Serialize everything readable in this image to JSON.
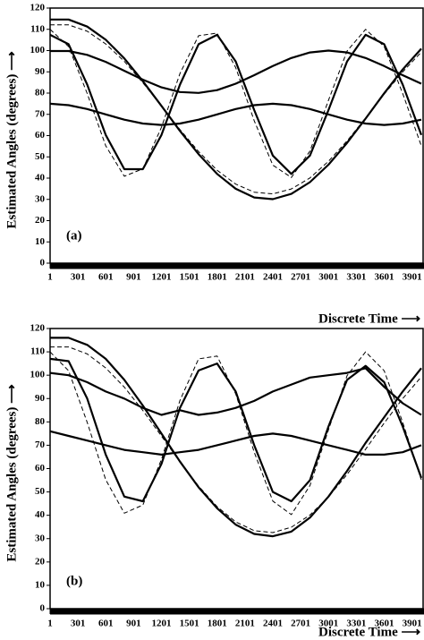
{
  "chart_data": [
    {
      "type": "line",
      "panel_label": "(a)",
      "xlabel": "Discrete Time  ⟶",
      "ylabel": "Estimated Angles (degrees)  ⟶",
      "x": [
        1,
        201,
        401,
        601,
        801,
        1001,
        1201,
        1401,
        1601,
        1801,
        2001,
        2201,
        2401,
        2601,
        2801,
        3001,
        3201,
        3401,
        3601,
        3801,
        4001
      ],
      "xlim": [
        1,
        4030
      ],
      "xticks": [
        1,
        301,
        601,
        901,
        1201,
        1501,
        1801,
        2101,
        2401,
        2701,
        3001,
        3301,
        3601,
        3901
      ],
      "ylim": [
        0,
        120
      ],
      "yticks": [
        0,
        10,
        20,
        30,
        40,
        50,
        60,
        70,
        80,
        90,
        100,
        110,
        120
      ],
      "series": [
        {
          "color": "#000000",
          "style": "solid",
          "values": [
            107.4,
            103.0,
            84.0,
            60.3,
            44.2,
            44.2,
            60.3,
            84.0,
            103.0,
            107.4,
            94.9,
            72.0,
            50.6,
            42,
            50.6,
            72.0,
            94.9,
            107.4,
            103.0,
            84.0,
            60.3
          ]
        },
        {
          "color": "#000000",
          "style": "dashed",
          "values": [
            110.0,
            101.9,
            79.8,
            55.2,
            40.9,
            44.4,
            63.9,
            89.2,
            107.0,
            108.2,
            92.0,
            67.0,
            46.1,
            40.3,
            52.7,
            76.6,
            99.8,
            110.0,
            101.9,
            79.8,
            55.2
          ]
        },
        {
          "color": "#000000",
          "style": "solid",
          "values": [
            114.6,
            114.6,
            111.3,
            105.1,
            96.3,
            85.6,
            74.0,
            62.2,
            51.3,
            42.0,
            35.0,
            30.9,
            30.1,
            32.6,
            38.1,
            46.3,
            56.6,
            68.0,
            79.9,
            91.1,
            100.9
          ]
        },
        {
          "color": "#000000",
          "style": "dashed",
          "values": [
            112.1,
            112.1,
            109.1,
            103.1,
            94.9,
            84.9,
            73.9,
            62.8,
            52.5,
            43.7,
            37.2,
            33.4,
            32.6,
            34.9,
            40.1,
            47.9,
            57.5,
            68.3,
            79.5,
            90.0,
            99.3
          ]
        },
        {
          "color": "#000000",
          "style": "solid",
          "values": [
            99.8,
            99.8,
            98.0,
            94.7,
            90.5,
            86.3,
            82.7,
            80.5,
            80.1,
            81.4,
            84.4,
            88.4,
            92.7,
            96.5,
            99.1,
            100,
            99.1,
            96.5,
            92.7,
            88.4,
            84.4
          ]
        },
        {
          "color": "#000000",
          "style": "solid",
          "values": [
            75,
            74.3,
            72.5,
            70,
            67.5,
            65.7,
            65,
            65.7,
            67.5,
            70,
            72.5,
            74.3,
            75,
            74.3,
            72.5,
            70,
            67.5,
            65.7,
            65,
            65.7,
            67.5
          ]
        }
      ]
    },
    {
      "type": "line",
      "panel_label": "(b)",
      "xlabel": "Discrete Time  ⟶",
      "ylabel": "Estimated Angles (degrees)  ⟶",
      "x": [
        1,
        201,
        401,
        601,
        801,
        1001,
        1201,
        1401,
        1601,
        1801,
        2001,
        2201,
        2401,
        2601,
        2801,
        3001,
        3201,
        3401,
        3601,
        3801,
        4001
      ],
      "xlim": [
        1,
        4030
      ],
      "xticks": [
        1,
        301,
        601,
        901,
        1201,
        1501,
        1801,
        2101,
        2401,
        2701,
        3001,
        3301,
        3601,
        3901
      ],
      "ylim": [
        0,
        120
      ],
      "yticks": [
        0,
        10,
        20,
        30,
        40,
        50,
        60,
        70,
        80,
        90,
        100,
        110,
        120
      ],
      "series": [
        {
          "color": "#000000",
          "style": "solid",
          "values": [
            107,
            106,
            90,
            66,
            48,
            46,
            62,
            86,
            102,
            105,
            93,
            70,
            50,
            46,
            55,
            78,
            98,
            104,
            97,
            78,
            56
          ]
        },
        {
          "color": "#000000",
          "style": "dashed",
          "values": [
            110.0,
            101.9,
            79.8,
            55.2,
            40.9,
            44.4,
            63.9,
            89.2,
            107.0,
            108.2,
            92.0,
            67.0,
            46.1,
            40.3,
            52.7,
            76.6,
            99.8,
            110.0,
            101.9,
            79.8,
            55.2
          ]
        },
        {
          "color": "#000000",
          "style": "solid",
          "values": [
            116,
            116,
            113,
            107,
            98,
            87,
            75,
            63,
            52,
            43,
            36,
            32,
            31,
            33,
            39,
            48,
            59,
            71,
            82,
            93,
            103
          ]
        },
        {
          "color": "#000000",
          "style": "dashed",
          "values": [
            112.1,
            112.1,
            109.1,
            103.1,
            94.9,
            84.9,
            73.9,
            62.8,
            52.5,
            43.7,
            37.2,
            33.4,
            32.6,
            34.9,
            40.1,
            47.9,
            57.5,
            68.3,
            79.5,
            90.0,
            99.3
          ]
        },
        {
          "color": "#000000",
          "style": "solid",
          "values": [
            101,
            100,
            97,
            93,
            90,
            86,
            83,
            85,
            83,
            84,
            86,
            89,
            93,
            96,
            99,
            100,
            101,
            103,
            95,
            88,
            83
          ]
        },
        {
          "color": "#000000",
          "style": "solid",
          "values": [
            76,
            74,
            72,
            70,
            68,
            67,
            66,
            67,
            68,
            70,
            72,
            74,
            75,
            74,
            72,
            70,
            68,
            66,
            66,
            67,
            70
          ]
        }
      ]
    }
  ]
}
